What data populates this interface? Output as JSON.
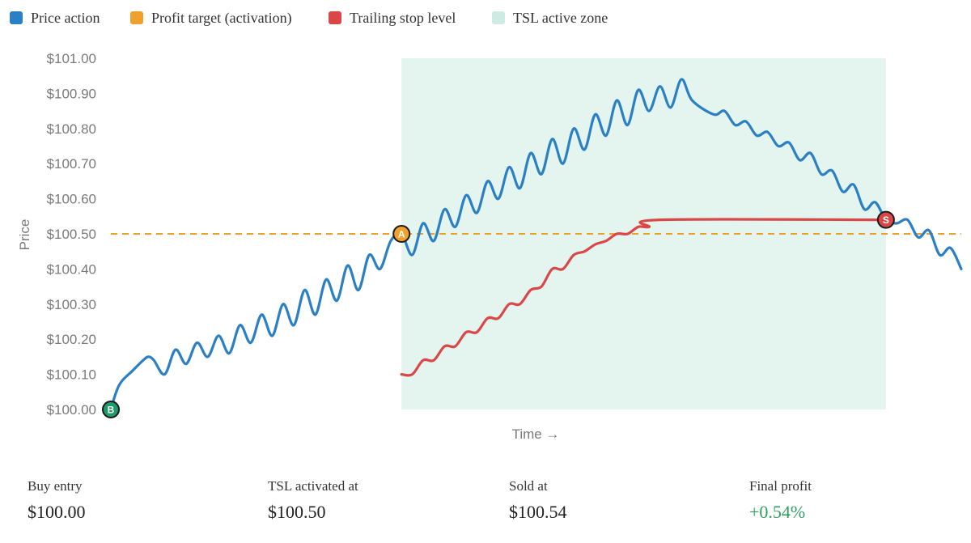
{
  "legend": [
    {
      "label": "Price action",
      "color": "#2b7fc4"
    },
    {
      "label": "Profit target (activation)",
      "color": "#f0a12c"
    },
    {
      "label": "Trailing stop level",
      "color": "#d94747"
    },
    {
      "label": "TSL active zone",
      "color": "#cdebe2"
    }
  ],
  "chart_data": {
    "type": "line",
    "xlabel": "Time →",
    "ylabel": "Price",
    "ylim": [
      100.0,
      101.0
    ],
    "xlim": [
      0,
      100
    ],
    "yticks": [
      "$100.00",
      "$100.10",
      "$100.20",
      "$100.30",
      "$100.40",
      "$100.50",
      "$100.60",
      "$100.70",
      "$100.80",
      "$100.90",
      "$101.00"
    ],
    "grid": false,
    "legend_position": "top",
    "series": [
      {
        "name": "Price action",
        "color": "#2b7fc4",
        "points": [
          [
            0,
            100.0
          ],
          [
            0.5,
            100.05
          ],
          [
            1.0,
            100.08
          ],
          [
            2.0,
            100.11
          ],
          [
            3.0,
            100.14
          ],
          [
            3.5,
            100.15
          ],
          [
            4.0,
            100.14
          ],
          [
            5.0,
            100.1
          ],
          [
            6.0,
            100.17
          ],
          [
            7.0,
            100.13
          ],
          [
            8.0,
            100.19
          ],
          [
            9.0,
            100.15
          ],
          [
            10.0,
            100.21
          ],
          [
            11.0,
            100.16
          ],
          [
            12.0,
            100.24
          ],
          [
            13.0,
            100.19
          ],
          [
            14.0,
            100.27
          ],
          [
            15.0,
            100.21
          ],
          [
            16.0,
            100.3
          ],
          [
            17.0,
            100.24
          ],
          [
            18.0,
            100.34
          ],
          [
            19.0,
            100.27
          ],
          [
            20.0,
            100.37
          ],
          [
            21.0,
            100.31
          ],
          [
            22.0,
            100.41
          ],
          [
            23.0,
            100.34
          ],
          [
            24.0,
            100.44
          ],
          [
            25.0,
            100.4
          ],
          [
            26.0,
            100.48
          ],
          [
            27.0,
            100.5
          ],
          [
            28.0,
            100.44
          ],
          [
            29.0,
            100.53
          ],
          [
            30.0,
            100.48
          ],
          [
            31.0,
            100.57
          ],
          [
            32.0,
            100.52
          ],
          [
            33.0,
            100.61
          ],
          [
            34.0,
            100.56
          ],
          [
            35.0,
            100.65
          ],
          [
            36.0,
            100.6
          ],
          [
            37.0,
            100.69
          ],
          [
            38.0,
            100.63
          ],
          [
            39.0,
            100.73
          ],
          [
            40.0,
            100.67
          ],
          [
            41.0,
            100.77
          ],
          [
            42.0,
            100.7
          ],
          [
            43.0,
            100.8
          ],
          [
            44.0,
            100.74
          ],
          [
            45.0,
            100.84
          ],
          [
            46.0,
            100.78
          ],
          [
            47.0,
            100.88
          ],
          [
            48.0,
            100.81
          ],
          [
            49.0,
            100.91
          ],
          [
            50.0,
            100.85
          ],
          [
            51.0,
            100.92
          ],
          [
            52.0,
            100.86
          ],
          [
            53.0,
            100.94
          ],
          [
            54.0,
            100.88
          ],
          [
            56.0,
            100.84
          ],
          [
            57.0,
            100.85
          ],
          [
            58.0,
            100.81
          ],
          [
            59.0,
            100.82
          ],
          [
            60.0,
            100.78
          ],
          [
            61.0,
            100.79
          ],
          [
            62.0,
            100.75
          ],
          [
            63.0,
            100.76
          ],
          [
            64.0,
            100.71
          ],
          [
            65.0,
            100.73
          ],
          [
            66.0,
            100.67
          ],
          [
            67.0,
            100.68
          ],
          [
            68.0,
            100.62
          ],
          [
            69.0,
            100.64
          ],
          [
            70.0,
            100.57
          ],
          [
            71.0,
            100.59
          ],
          [
            72.0,
            100.54
          ],
          [
            73.0,
            100.53
          ],
          [
            74.0,
            100.54
          ],
          [
            75.0,
            100.49
          ],
          [
            76.0,
            100.51
          ],
          [
            77.0,
            100.44
          ],
          [
            78.0,
            100.46
          ],
          [
            79.0,
            100.4
          ]
        ]
      },
      {
        "name": "Trailing stop level",
        "color": "#d94747",
        "points": [
          [
            27.0,
            100.1
          ],
          [
            28.0,
            100.1
          ],
          [
            29.0,
            100.14
          ],
          [
            30.0,
            100.14
          ],
          [
            31.0,
            100.18
          ],
          [
            32.0,
            100.18
          ],
          [
            33.0,
            100.22
          ],
          [
            34.0,
            100.22
          ],
          [
            35.0,
            100.26
          ],
          [
            36.0,
            100.26
          ],
          [
            37.0,
            100.3
          ],
          [
            38.0,
            100.3
          ],
          [
            39.0,
            100.34
          ],
          [
            40.0,
            100.35
          ],
          [
            41.0,
            100.4
          ],
          [
            42.0,
            100.4
          ],
          [
            43.0,
            100.44
          ],
          [
            44.0,
            100.45
          ],
          [
            45.0,
            100.47
          ],
          [
            46.0,
            100.48
          ],
          [
            47.0,
            100.5
          ],
          [
            48.0,
            100.5
          ],
          [
            49.0,
            100.52
          ],
          [
            50.0,
            100.52
          ],
          [
            51.0,
            100.54
          ],
          [
            72.0,
            100.54
          ]
        ]
      }
    ],
    "reference_line": {
      "name": "Profit target (activation)",
      "y": 100.5,
      "color": "#f0a12c",
      "style": "dashed"
    },
    "shaded_zone": {
      "name": "TSL active zone",
      "x_start": 27.0,
      "x_end": 72.0,
      "y_start": 100.0,
      "y_end": 101.0,
      "color": "#cdebe2"
    },
    "markers": [
      {
        "label": "B",
        "x": 0,
        "y": 100.0,
        "color": "#1f9a6a"
      },
      {
        "label": "A",
        "x": 27.0,
        "y": 100.5,
        "color": "#f0a12c"
      },
      {
        "label": "S",
        "x": 72.0,
        "y": 100.54,
        "color": "#d94747"
      }
    ]
  },
  "stats": [
    {
      "label": "Buy entry",
      "value": "$100.00",
      "color": "#222222"
    },
    {
      "label": "TSL activated at",
      "value": "$100.50",
      "color": "#222222"
    },
    {
      "label": "Sold at",
      "value": "$100.54",
      "color": "#222222"
    },
    {
      "label": "Final profit",
      "value": "+0.54%",
      "color": "#2e9e62"
    }
  ]
}
